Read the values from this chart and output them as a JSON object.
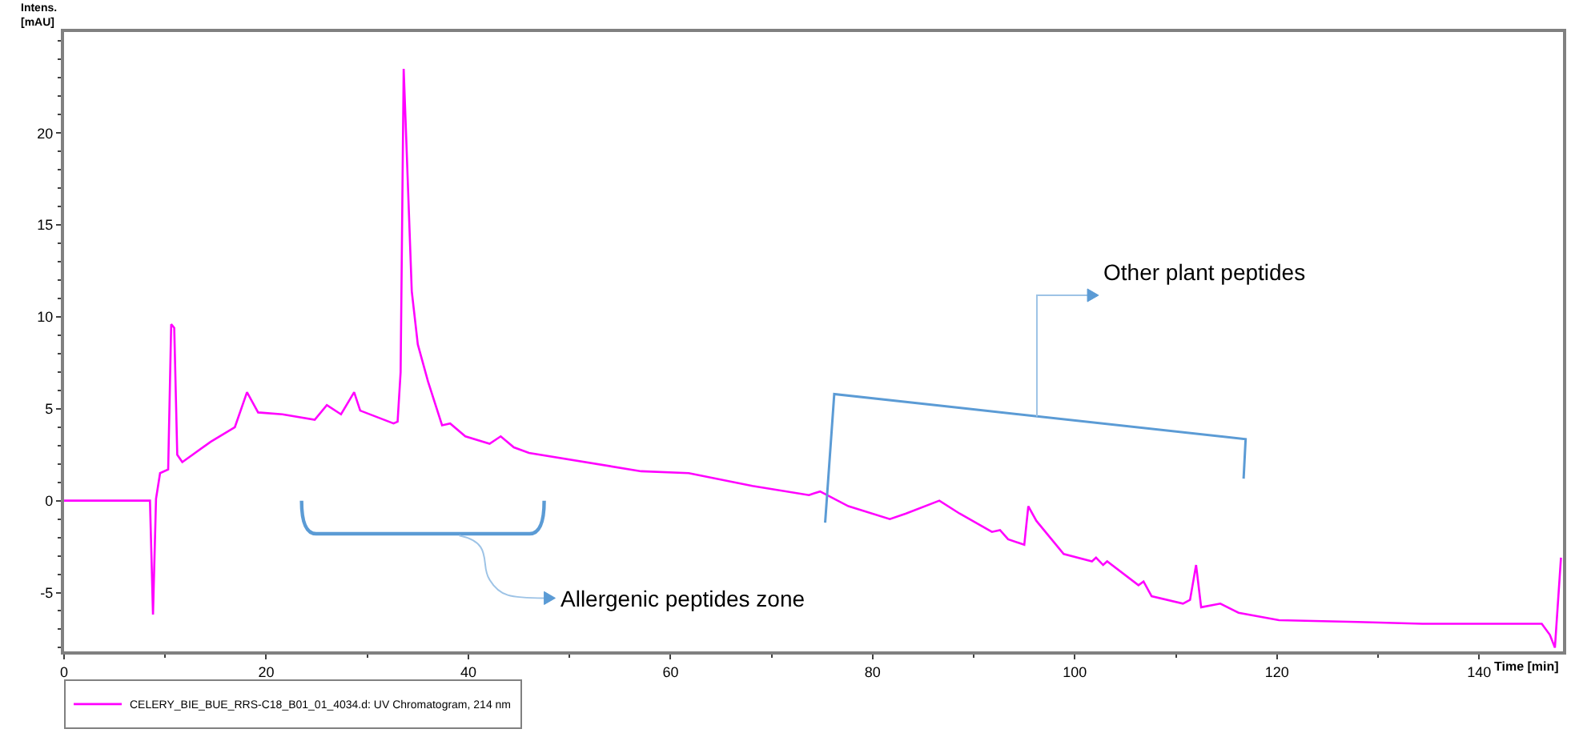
{
  "chart_data": {
    "type": "line",
    "xlabel": "Time [min]",
    "ylabel": "Intens.\n[mAU]",
    "x": [
      0,
      4,
      8.5,
      8.8,
      9.1,
      9.5,
      10.3,
      10.6,
      10.9,
      11.2,
      11.7,
      14.5,
      16.9,
      18.1,
      19.2,
      21.6,
      24.8,
      26,
      27.4,
      28.7,
      29.3,
      32.6,
      33,
      33.3,
      33.6,
      33.9,
      34.4,
      35,
      36,
      37.4,
      38.2,
      39.7,
      42.1,
      43.2,
      44.5,
      46,
      57.1,
      61.8,
      68.1,
      73.7,
      74.2,
      74.8,
      77.6,
      81.7,
      83.3,
      86.6,
      88.6,
      91.8,
      92.6,
      93.4,
      95,
      95.4,
      96.2,
      98.9,
      101.7,
      102.1,
      102.8,
      103.2,
      106.3,
      106.8,
      107.6,
      110.7,
      111.4,
      112,
      112.5,
      114.4,
      116.2,
      120.2,
      128,
      134.4,
      146.2,
      147,
      147.5,
      148.1
    ],
    "series": [
      {
        "name": "CELERY_BIE_BUE_RRS-C18_B01_01_4034.d: UV Chromatogram, 214 nm",
        "color": "#ff00ff",
        "values": [
          0,
          0,
          0,
          -6.2,
          0.1,
          1.5,
          1.7,
          9.6,
          9.4,
          2.5,
          2.1,
          3.2,
          4,
          5.9,
          4.8,
          4.7,
          4.4,
          5.2,
          4.7,
          5.9,
          4.9,
          4.2,
          4.3,
          7,
          23.5,
          19,
          11.4,
          8.5,
          6.5,
          4.1,
          4.2,
          3.5,
          3.1,
          3.5,
          2.9,
          2.6,
          1.6,
          1.5,
          0.8,
          0.3,
          0.4,
          0.5,
          -0.3,
          -1,
          -0.7,
          0,
          -0.7,
          -1.7,
          -1.6,
          -2.1,
          -2.4,
          -0.3,
          -1.1,
          -2.9,
          -3.3,
          -3.1,
          -3.5,
          -3.3,
          -4.6,
          -4.4,
          -5.2,
          -5.6,
          -5.4,
          -3.5,
          -5.8,
          -5.6,
          -6.1,
          -6.5,
          -6.6,
          -6.7,
          -6.7,
          -7.3,
          -8,
          -3.1
        ]
      }
    ],
    "xlim": [
      0,
      148.3
    ],
    "ylim": [
      -8.2,
      25.5
    ],
    "xticks": [
      0,
      20,
      40,
      60,
      80,
      100,
      120,
      140
    ],
    "yticks": [
      -5,
      0,
      5,
      10,
      15,
      20
    ],
    "annotations": [
      "Allergenic peptides zone",
      "Other plant peptides"
    ],
    "legend": "bottom",
    "marker": "none",
    "line_style": "solid"
  }
}
